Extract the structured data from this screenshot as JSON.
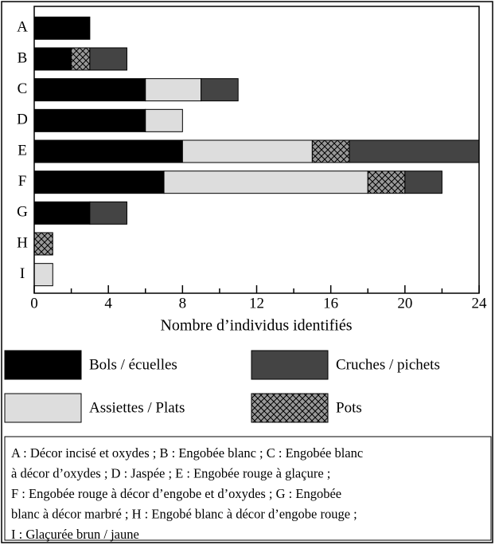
{
  "chart_data": {
    "type": "stacked_barh",
    "categories": [
      "A",
      "B",
      "C",
      "D",
      "E",
      "F",
      "G",
      "H",
      "I"
    ],
    "series": [
      {
        "name": "Bols / écuelles",
        "color": "#000000",
        "values": [
          3,
          2,
          6,
          6,
          8,
          7,
          3,
          0,
          0
        ]
      },
      {
        "name": "Assiettes / Plats",
        "color": "#dddddd",
        "values": [
          0,
          0,
          3,
          2,
          7,
          11,
          0,
          0,
          1
        ]
      },
      {
        "name": "Pots",
        "color": "#999999",
        "pattern": "crosshatch",
        "values": [
          0,
          1,
          0,
          0,
          2,
          2,
          0,
          1,
          0
        ]
      },
      {
        "name": "Cruches / pichets",
        "color": "#444444",
        "values": [
          0,
          2,
          2,
          0,
          7,
          2,
          2,
          0,
          0
        ]
      }
    ],
    "xlim": [
      0,
      24
    ],
    "xticks": [
      0,
      4,
      8,
      12,
      16,
      20,
      24
    ],
    "xminorticks": [
      2,
      6,
      10,
      14,
      18,
      22
    ],
    "xlabel": "Nombre d’individus identifiés",
    "note": [
      "A : Décor incisé et oxydes ; B : Engobée blanc ; C : Engobée blanc",
      "à décor d’oxydes ; D : Jaspée ; E : Engobée rouge à glaçure ;",
      "F : Engobée rouge à décor d’engobe et d’oxydes ; G : Engobée",
      "blanc à décor marbré ; H : Engobé blanc à décor d’engobe rouge ;",
      "I : Glaçurée brun / jaune"
    ]
  }
}
